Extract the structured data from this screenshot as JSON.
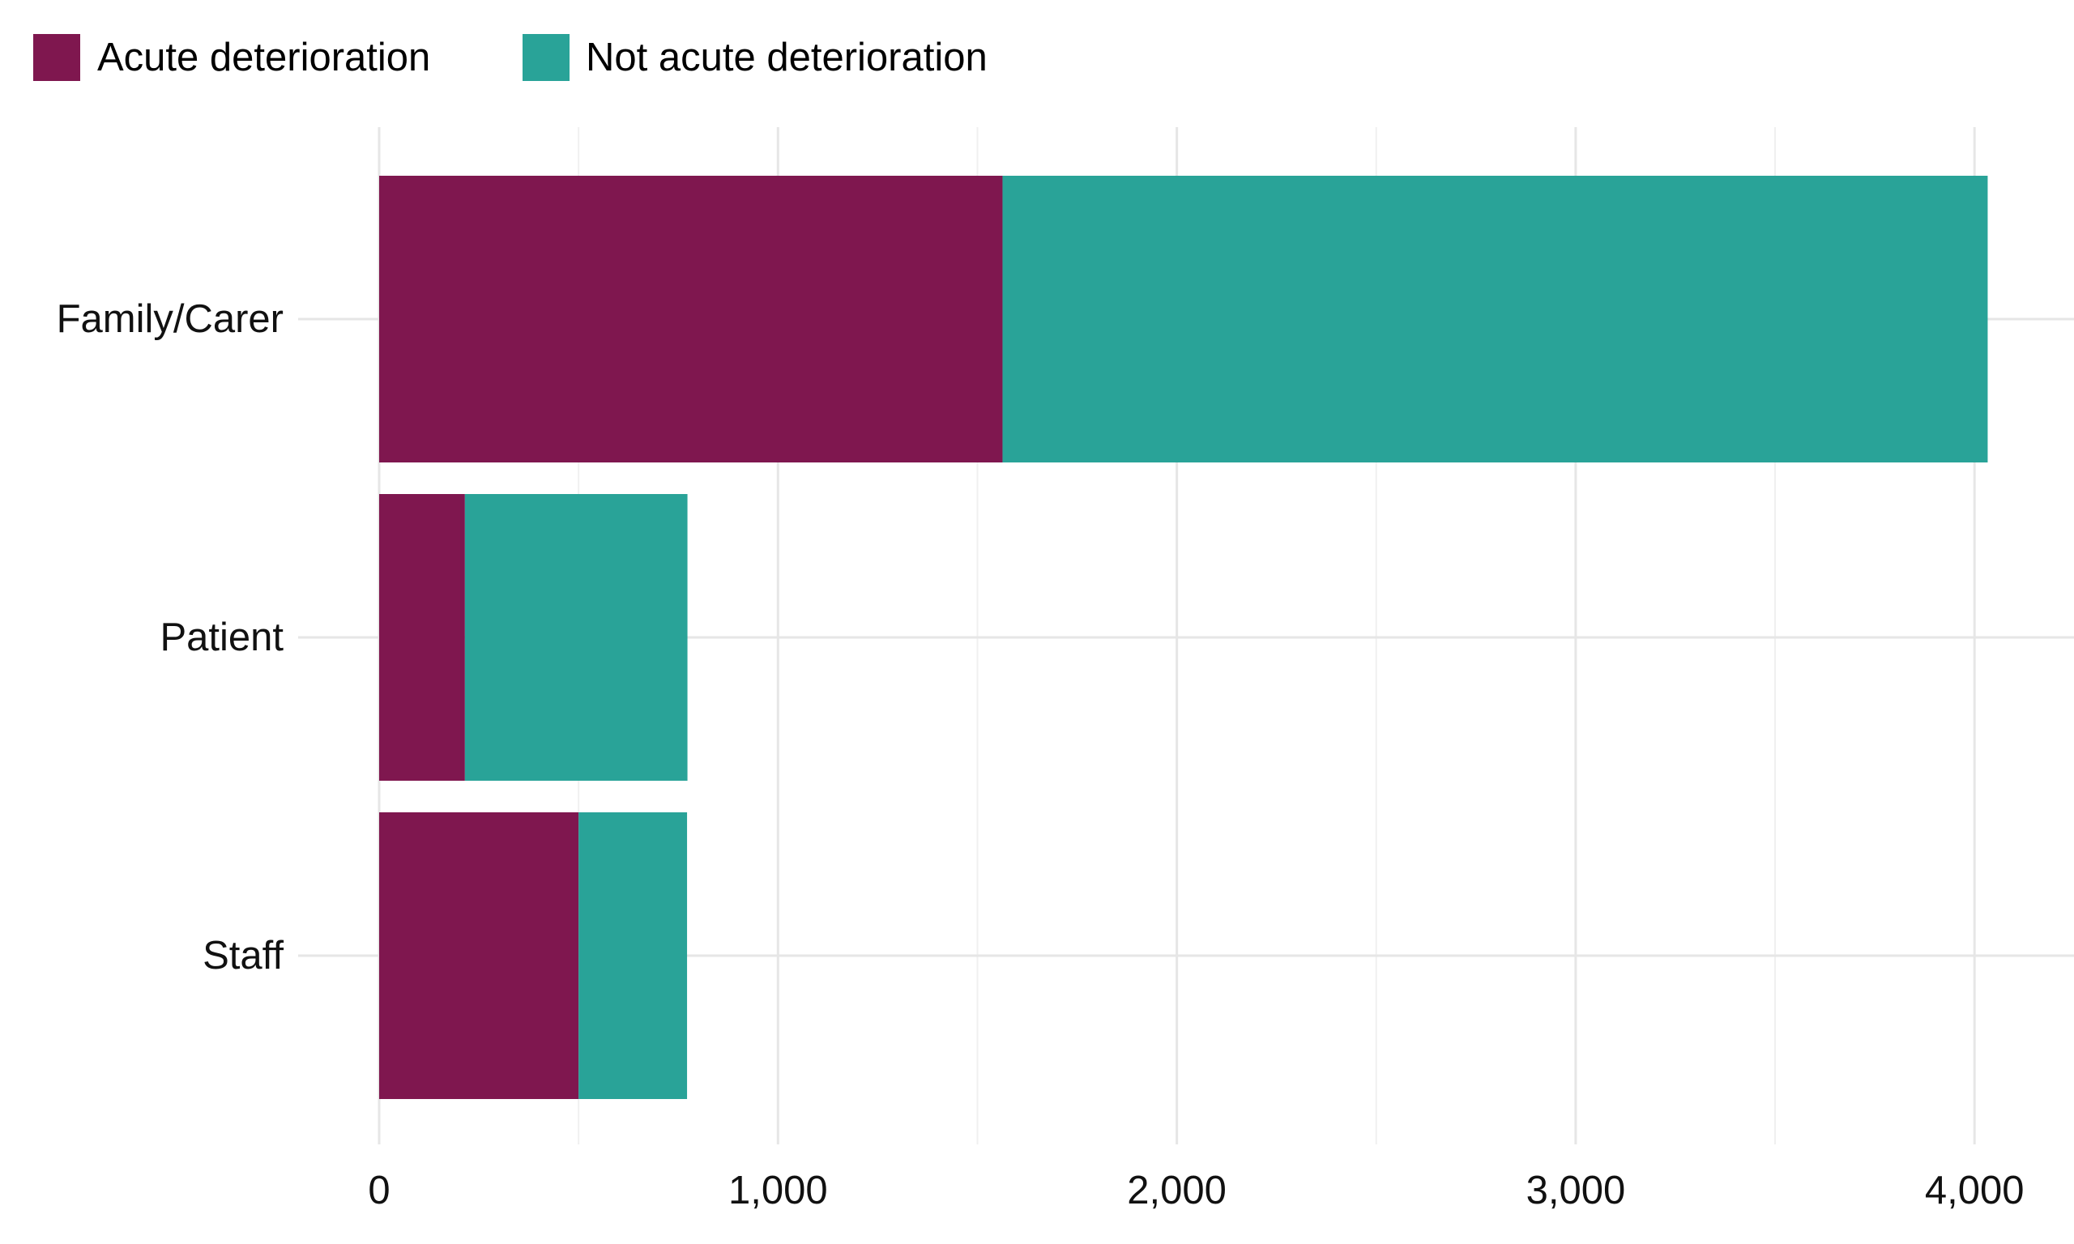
{
  "chart_data": {
    "type": "bar",
    "orientation": "horizontal",
    "stacked": true,
    "categories": [
      "Family/Carer",
      "Patient",
      "Staff"
    ],
    "series": [
      {
        "name": "Acute deterioration",
        "color": "#7f174f",
        "values": [
          1563,
          215,
          500
        ]
      },
      {
        "name": "Not acute deterioration",
        "color": "#29a398",
        "values": [
          2470,
          558,
          272
        ]
      }
    ],
    "title": "",
    "xlabel": "",
    "ylabel": "",
    "xlim": [
      0,
      4150
    ],
    "x_ticks": [
      0,
      1000,
      2000,
      3000,
      4000
    ],
    "x_tick_labels": [
      "0",
      "1,000",
      "2,000",
      "3,000",
      "4,000"
    ],
    "grid": true,
    "legend_position": "top-left"
  }
}
